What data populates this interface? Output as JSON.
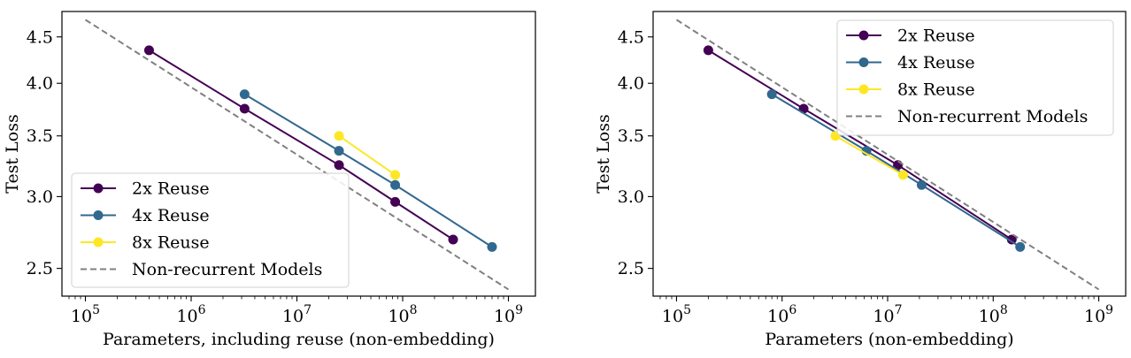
{
  "colors": {
    "reuse2": "#440154",
    "reuse4": "#31688e",
    "reuse8": "#fde725",
    "nonrecurrent": "#808080"
  },
  "chart_data": [
    {
      "type": "line",
      "xscale": "log",
      "yscale": "log",
      "xlabel": "Parameters, including reuse (non-embedding)",
      "ylabel": "Test Loss",
      "xlim": [
        60000,
        1800000000
      ],
      "ylim": [
        2.33,
        4.8
      ],
      "xticks": [
        100000,
        1000000,
        10000000,
        100000000,
        1000000000
      ],
      "xtick_labels": [
        [
          "10",
          "5"
        ],
        [
          "10",
          "6"
        ],
        [
          "10",
          "7"
        ],
        [
          "10",
          "8"
        ],
        [
          "10",
          "9"
        ]
      ],
      "yticks": [
        2.5,
        3.0,
        3.5,
        4.0,
        4.5
      ],
      "ytick_labels": [
        "2.5",
        "3.0",
        "3.5",
        "4.0",
        "4.5"
      ],
      "grid": false,
      "legend_position": "lower-left",
      "series": [
        {
          "name": "2x Reuse",
          "style": "line-marker",
          "color": "#440154",
          "x": [
            400000,
            3200000,
            25000000,
            85000000,
            300000000
          ],
          "y": [
            4.35,
            3.75,
            3.25,
            2.96,
            2.69
          ]
        },
        {
          "name": "4x Reuse",
          "style": "line-marker",
          "color": "#31688e",
          "x": [
            3200000,
            25000000,
            85000000,
            700000000
          ],
          "y": [
            3.89,
            3.37,
            3.09,
            2.64
          ]
        },
        {
          "name": "8x Reuse",
          "style": "line-marker",
          "color": "#fde725",
          "x": [
            25000000,
            85000000
          ],
          "y": [
            3.5,
            3.17
          ]
        },
        {
          "name": "Non-recurrent Models",
          "style": "dashed",
          "color": "#808080",
          "x": [
            100000,
            1000000000
          ],
          "y": [
            4.7,
            2.37
          ]
        }
      ]
    },
    {
      "type": "line",
      "xscale": "log",
      "yscale": "log",
      "xlabel": "Parameters (non-embedding)",
      "ylabel": "Test Loss",
      "xlim": [
        60000,
        1800000000
      ],
      "ylim": [
        2.33,
        4.8
      ],
      "xticks": [
        100000,
        1000000,
        10000000,
        100000000,
        1000000000
      ],
      "xtick_labels": [
        [
          "10",
          "5"
        ],
        [
          "10",
          "6"
        ],
        [
          "10",
          "7"
        ],
        [
          "10",
          "8"
        ],
        [
          "10",
          "9"
        ]
      ],
      "yticks": [
        2.5,
        3.0,
        3.5,
        4.0,
        4.5
      ],
      "ytick_labels": [
        "2.5",
        "3.0",
        "3.5",
        "4.0",
        "4.5"
      ],
      "grid": false,
      "legend_position": "upper-right",
      "series": [
        {
          "name": "2x Reuse",
          "style": "line-marker",
          "color": "#440154",
          "x": [
            200000,
            1600000,
            12500000,
            150000000
          ],
          "y": [
            4.35,
            3.75,
            3.25,
            2.69
          ]
        },
        {
          "name": "4x Reuse",
          "style": "line-marker",
          "color": "#31688e",
          "x": [
            800000,
            6300000,
            21000000,
            180000000
          ],
          "y": [
            3.89,
            3.37,
            3.09,
            2.64
          ]
        },
        {
          "name": "8x Reuse",
          "style": "line-marker",
          "color": "#fde725",
          "x": [
            3200000,
            14000000
          ],
          "y": [
            3.5,
            3.17
          ]
        },
        {
          "name": "Non-recurrent Models",
          "style": "dashed",
          "color": "#808080",
          "x": [
            100000,
            1000000000
          ],
          "y": [
            4.7,
            2.37
          ]
        }
      ]
    }
  ]
}
